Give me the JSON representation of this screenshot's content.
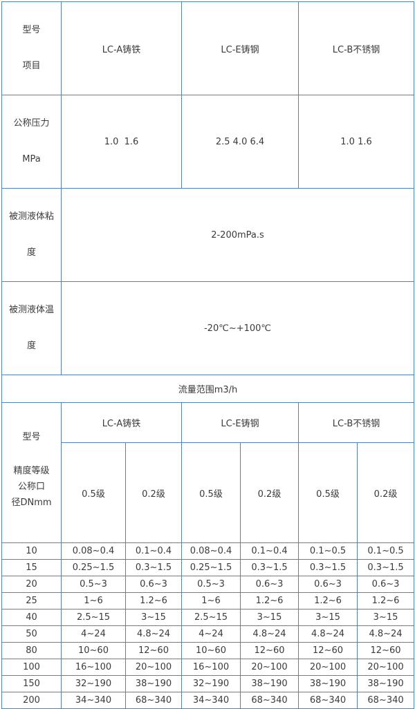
{
  "chart_data": {
    "type": "table",
    "colors": {
      "border": "#4f81bd",
      "text": "#3a3a3a",
      "background": "#ffffff"
    },
    "spec": {
      "corner": {
        "line1": "型号",
        "line2": "项目"
      },
      "columns": [
        "LC-A铸铁",
        "LC-E铸钢",
        "LC-B不锈钢"
      ],
      "pressure": {
        "label_line1": "公称压力",
        "label_line2": "MPa",
        "values": [
          "1.0  1.6",
          "2.5 4.0 6.4",
          "1.0 1.6"
        ]
      },
      "viscosity": {
        "label_line1": "被测液体粘",
        "label_line2": "度",
        "value": "2-200mPa.s"
      },
      "temperature": {
        "label_line1": "被测液体温",
        "label_line2": "度",
        "value": "-20℃~+100℃"
      },
      "flow_banner": "流量范围m3/h"
    },
    "flow": {
      "corner_top": "型号",
      "corner_bottom_lines": [
        "精度等级",
        "公称口",
        "径DNmm"
      ],
      "groups": [
        "LC-A铸铁",
        "LC-E铸钢",
        "LC-B不锈钢"
      ],
      "accuracy_classes": [
        "0.5级",
        "0.2级"
      ],
      "rows": [
        {
          "dn": "10",
          "values": [
            "0.08~0.4",
            "0.1~0.4",
            "0.08~0.4",
            "0.1~0.4",
            "0.1~0.5",
            "0.1~0.5"
          ]
        },
        {
          "dn": "15",
          "values": [
            "0.25~1.5",
            "0.3~1.5",
            "0.25~1.5",
            "0.3~1.5",
            "0.3~1.5",
            "0.3~1.5"
          ]
        },
        {
          "dn": "20",
          "values": [
            "0.5~3",
            "0.6~3",
            "0.5~3",
            "0.6~3",
            "0.6~3",
            "0.6~3"
          ]
        },
        {
          "dn": "25",
          "values": [
            "1~6",
            "1.2~6",
            "1~6",
            "1.2~6",
            "1.2~6",
            "1.2~6"
          ]
        },
        {
          "dn": "40",
          "values": [
            "2.5~15",
            "3~15",
            "2.5~15",
            "3~15",
            "3~15",
            "3~15"
          ]
        },
        {
          "dn": "50",
          "values": [
            "4~24",
            "4.8~24",
            "4~24",
            "4.8~24",
            "4.8~24",
            "4.8~24"
          ]
        },
        {
          "dn": "80",
          "values": [
            "10~60",
            "12~60",
            "10~60",
            "12~60",
            "12~60",
            "12~60"
          ]
        },
        {
          "dn": "100",
          "values": [
            "16~100",
            "20~100",
            "16~100",
            "20~100",
            "20~100",
            "20~100"
          ]
        },
        {
          "dn": "150",
          "values": [
            "32~190",
            "38~190",
            "32~190",
            "38~190",
            "38~190",
            "38~190"
          ]
        },
        {
          "dn": "200",
          "values": [
            "34~340",
            "68~340",
            "34~340",
            "68~340",
            "68~340",
            "68~340"
          ]
        }
      ]
    }
  }
}
